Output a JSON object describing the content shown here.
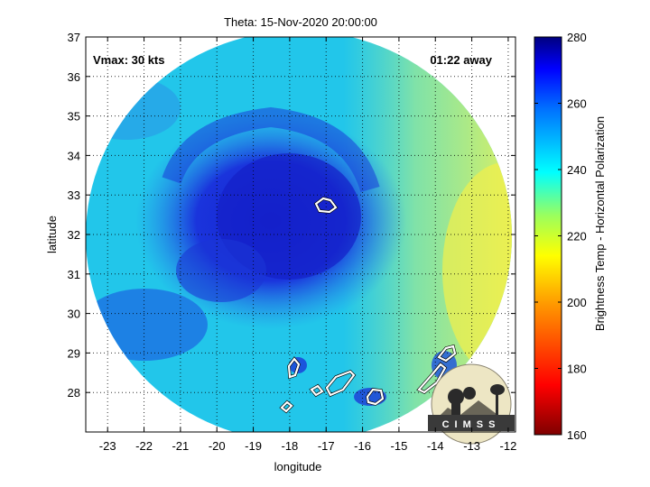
{
  "title": "Theta: 15-Nov-2020 20:00:00",
  "annotations": {
    "vmax": "Vmax: 30 kts",
    "time_away": "01:22 away"
  },
  "logo_text": "CIMSS",
  "axes": {
    "xlabel": "longitude",
    "ylabel": "latitude",
    "x_range": [
      -23.6,
      -11.8
    ],
    "y_range": [
      27.0,
      37.0
    ],
    "x_ticks": [
      -23,
      -22,
      -21,
      -20,
      -19,
      -18,
      -17,
      -16,
      -15,
      -14,
      -13,
      -12
    ],
    "y_ticks": [
      28,
      29,
      30,
      31,
      32,
      33,
      34,
      35,
      36,
      37
    ],
    "grid": "dotted"
  },
  "colorbar": {
    "label": "Brightness Temp - Horizontal Polarization",
    "range": [
      160,
      280
    ],
    "ticks": [
      160,
      180,
      200,
      220,
      240,
      260,
      280
    ],
    "colormap": [
      "#7f0000",
      "#ff0000",
      "#ff7f00",
      "#ffff00",
      "#7fff7f",
      "#00ffff",
      "#007fff",
      "#0000ff",
      "#00007f"
    ]
  },
  "colors": {
    "storm_core": "#1a2ad8",
    "field": "#22c6ea",
    "dry_east": "#c8f27a",
    "coastline": "#ffffff"
  }
}
